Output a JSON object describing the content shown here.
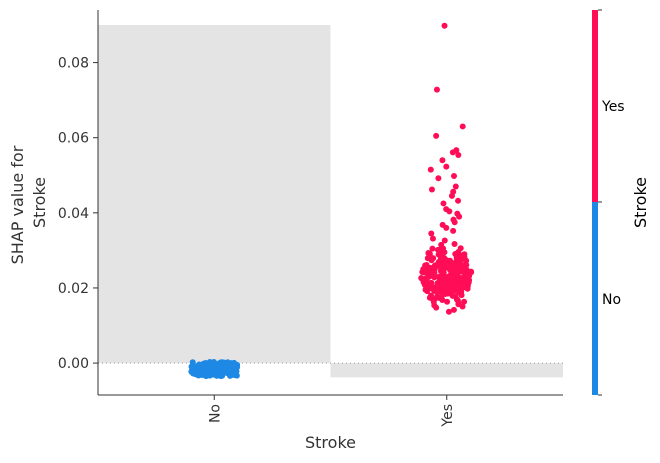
{
  "chart_data": {
    "type": "scatter",
    "xlabel": "Stroke",
    "ylabel_lines": [
      "SHAP value for",
      "Stroke"
    ],
    "categories": [
      "No",
      "Yes"
    ],
    "yticks": [
      0.0,
      0.02,
      0.04,
      0.06,
      0.08
    ],
    "ytick_labels": [
      "0.00",
      "0.02",
      "0.04",
      "0.06",
      "0.08"
    ],
    "ylim": [
      -0.0085,
      0.094
    ],
    "zero_line": true,
    "histogram_background": [
      {
        "category": "No",
        "value": 0.09
      },
      {
        "category": "Yes",
        "value": -0.0038
      }
    ],
    "series": [
      {
        "category": "No",
        "color": "#1E88E5",
        "count": 180,
        "y_min": -0.0035,
        "y_max": 0.0003,
        "y_center": -0.0015
      },
      {
        "category": "Yes",
        "color": "#FF0D57",
        "count": 250,
        "y_min": 0.0125,
        "y_max": 0.034,
        "y_center": 0.023,
        "outliers": [
          0.0898,
          0.0728,
          0.063,
          0.0605,
          0.0567,
          0.0561,
          0.0554,
          0.054,
          0.0523,
          0.0515,
          0.0498,
          0.0492,
          0.047,
          0.0462,
          0.0456,
          0.0445,
          0.0432,
          0.0425,
          0.041,
          0.0404,
          0.0398,
          0.039,
          0.0382,
          0.0375,
          0.0368,
          0.036,
          0.0352,
          0.0345
        ]
      }
    ],
    "colorbar": {
      "title": "Stroke",
      "labels": [
        "Yes",
        "No"
      ],
      "colors": [
        "#FF0D57",
        "#1E88E5"
      ]
    }
  }
}
